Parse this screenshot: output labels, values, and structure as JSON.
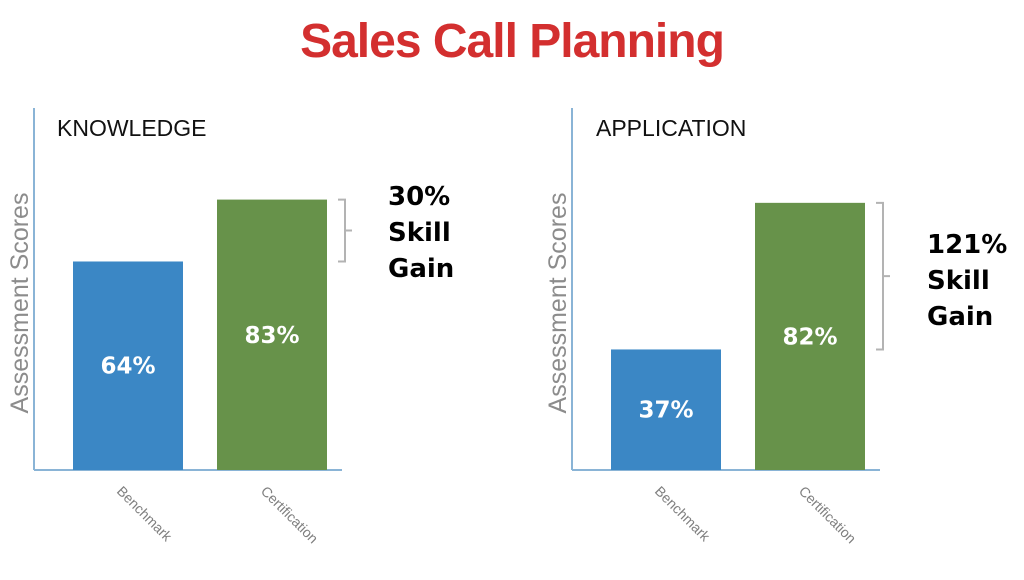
{
  "title": "Sales Call Planning",
  "colors": {
    "title": "#d32f2f",
    "benchmark": "#3b87c5",
    "certification": "#67924a",
    "axis": "#8ab4d6",
    "bracket": "#b3b3b3"
  },
  "chart_data": [
    {
      "type": "bar",
      "title": "KNOWLEDGE",
      "ylabel": "Assessment Scores",
      "xlabel": "",
      "categories": [
        "Benchmark",
        "Certification"
      ],
      "values": [
        64,
        83
      ],
      "data_labels": [
        "64%",
        "83%"
      ],
      "ylim": [
        0,
        100
      ],
      "grid": false,
      "gain_annotation": [
        "30%",
        "Skill",
        "Gain"
      ]
    },
    {
      "type": "bar",
      "title": "APPLICATION",
      "ylabel": "Assessment Scores",
      "xlabel": "",
      "categories": [
        "Benchmark",
        "Certification"
      ],
      "values": [
        37,
        82
      ],
      "data_labels": [
        "37%",
        "82%"
      ],
      "ylim": [
        0,
        100
      ],
      "grid": false,
      "gain_annotation": [
        "121%",
        "Skill",
        "Gain"
      ]
    }
  ]
}
